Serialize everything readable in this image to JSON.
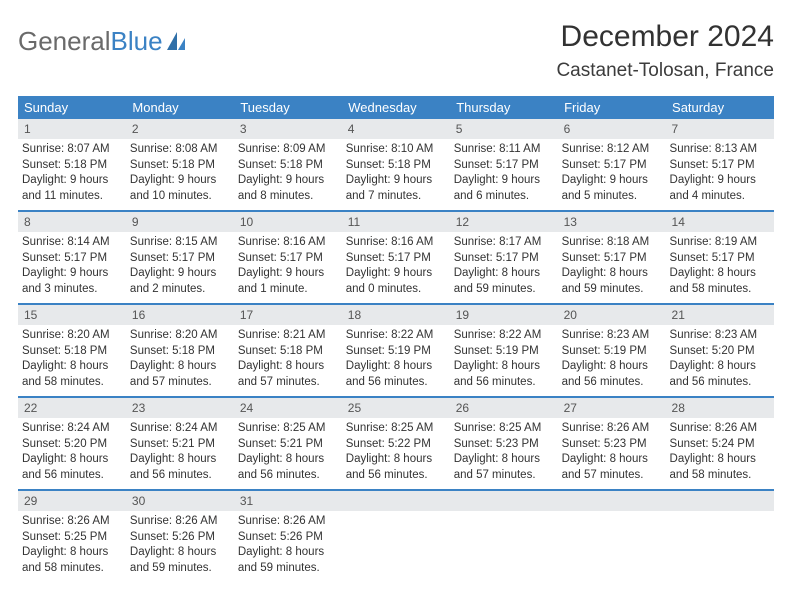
{
  "brand": {
    "word1": "General",
    "word2": "Blue"
  },
  "title": "December 2024",
  "location": "Castanet-Tolosan, France",
  "colors": {
    "header_bg": "#3b82c4",
    "daynum_bg": "#e7e9eb",
    "text": "#333333",
    "brand_blue": "#3b82c4",
    "brand_gray": "#6a6a6a",
    "border": "#3b82c4"
  },
  "typography": {
    "title_fontsize": 30,
    "location_fontsize": 19,
    "dow_fontsize": 13,
    "daynum_fontsize": 12,
    "info_fontsize": 11.5
  },
  "labels": {
    "sunrise": "Sunrise:",
    "sunset": "Sunset:",
    "daylight": "Daylight:"
  },
  "dow": [
    "Sunday",
    "Monday",
    "Tuesday",
    "Wednesday",
    "Thursday",
    "Friday",
    "Saturday"
  ],
  "weeks": [
    [
      {
        "n": "1",
        "sr": "8:07 AM",
        "ss": "5:18 PM",
        "dl": "9 hours and 11 minutes."
      },
      {
        "n": "2",
        "sr": "8:08 AM",
        "ss": "5:18 PM",
        "dl": "9 hours and 10 minutes."
      },
      {
        "n": "3",
        "sr": "8:09 AM",
        "ss": "5:18 PM",
        "dl": "9 hours and 8 minutes."
      },
      {
        "n": "4",
        "sr": "8:10 AM",
        "ss": "5:18 PM",
        "dl": "9 hours and 7 minutes."
      },
      {
        "n": "5",
        "sr": "8:11 AM",
        "ss": "5:17 PM",
        "dl": "9 hours and 6 minutes."
      },
      {
        "n": "6",
        "sr": "8:12 AM",
        "ss": "5:17 PM",
        "dl": "9 hours and 5 minutes."
      },
      {
        "n": "7",
        "sr": "8:13 AM",
        "ss": "5:17 PM",
        "dl": "9 hours and 4 minutes."
      }
    ],
    [
      {
        "n": "8",
        "sr": "8:14 AM",
        "ss": "5:17 PM",
        "dl": "9 hours and 3 minutes."
      },
      {
        "n": "9",
        "sr": "8:15 AM",
        "ss": "5:17 PM",
        "dl": "9 hours and 2 minutes."
      },
      {
        "n": "10",
        "sr": "8:16 AM",
        "ss": "5:17 PM",
        "dl": "9 hours and 1 minute."
      },
      {
        "n": "11",
        "sr": "8:16 AM",
        "ss": "5:17 PM",
        "dl": "9 hours and 0 minutes."
      },
      {
        "n": "12",
        "sr": "8:17 AM",
        "ss": "5:17 PM",
        "dl": "8 hours and 59 minutes."
      },
      {
        "n": "13",
        "sr": "8:18 AM",
        "ss": "5:17 PM",
        "dl": "8 hours and 59 minutes."
      },
      {
        "n": "14",
        "sr": "8:19 AM",
        "ss": "5:17 PM",
        "dl": "8 hours and 58 minutes."
      }
    ],
    [
      {
        "n": "15",
        "sr": "8:20 AM",
        "ss": "5:18 PM",
        "dl": "8 hours and 58 minutes."
      },
      {
        "n": "16",
        "sr": "8:20 AM",
        "ss": "5:18 PM",
        "dl": "8 hours and 57 minutes."
      },
      {
        "n": "17",
        "sr": "8:21 AM",
        "ss": "5:18 PM",
        "dl": "8 hours and 57 minutes."
      },
      {
        "n": "18",
        "sr": "8:22 AM",
        "ss": "5:19 PM",
        "dl": "8 hours and 56 minutes."
      },
      {
        "n": "19",
        "sr": "8:22 AM",
        "ss": "5:19 PM",
        "dl": "8 hours and 56 minutes."
      },
      {
        "n": "20",
        "sr": "8:23 AM",
        "ss": "5:19 PM",
        "dl": "8 hours and 56 minutes."
      },
      {
        "n": "21",
        "sr": "8:23 AM",
        "ss": "5:20 PM",
        "dl": "8 hours and 56 minutes."
      }
    ],
    [
      {
        "n": "22",
        "sr": "8:24 AM",
        "ss": "5:20 PM",
        "dl": "8 hours and 56 minutes."
      },
      {
        "n": "23",
        "sr": "8:24 AM",
        "ss": "5:21 PM",
        "dl": "8 hours and 56 minutes."
      },
      {
        "n": "24",
        "sr": "8:25 AM",
        "ss": "5:21 PM",
        "dl": "8 hours and 56 minutes."
      },
      {
        "n": "25",
        "sr": "8:25 AM",
        "ss": "5:22 PM",
        "dl": "8 hours and 56 minutes."
      },
      {
        "n": "26",
        "sr": "8:25 AM",
        "ss": "5:23 PM",
        "dl": "8 hours and 57 minutes."
      },
      {
        "n": "27",
        "sr": "8:26 AM",
        "ss": "5:23 PM",
        "dl": "8 hours and 57 minutes."
      },
      {
        "n": "28",
        "sr": "8:26 AM",
        "ss": "5:24 PM",
        "dl": "8 hours and 58 minutes."
      }
    ],
    [
      {
        "n": "29",
        "sr": "8:26 AM",
        "ss": "5:25 PM",
        "dl": "8 hours and 58 minutes."
      },
      {
        "n": "30",
        "sr": "8:26 AM",
        "ss": "5:26 PM",
        "dl": "8 hours and 59 minutes."
      },
      {
        "n": "31",
        "sr": "8:26 AM",
        "ss": "5:26 PM",
        "dl": "8 hours and 59 minutes."
      },
      null,
      null,
      null,
      null
    ]
  ]
}
